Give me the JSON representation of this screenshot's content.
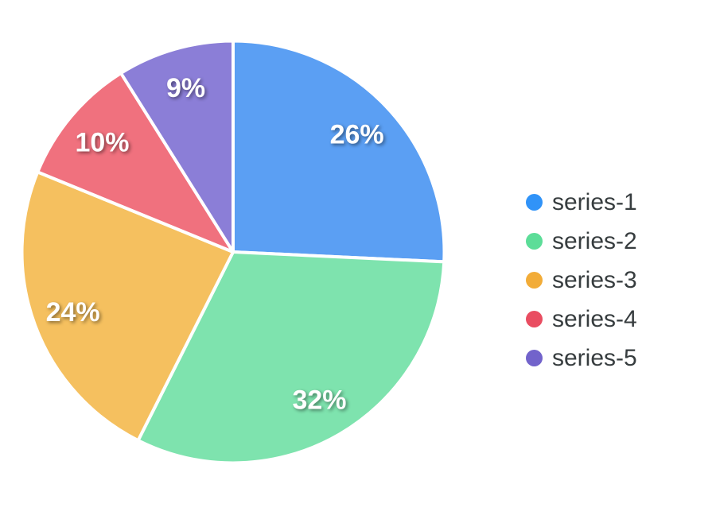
{
  "chart_data": {
    "type": "pie",
    "title": "",
    "labels": [
      "series-1",
      "series-2",
      "series-3",
      "series-4",
      "series-5"
    ],
    "values": [
      26,
      32,
      24,
      10,
      9
    ],
    "slice_labels": [
      "26%",
      "32%",
      "24%",
      "10%",
      "9%"
    ],
    "slice_colors": [
      "#5b9ff3",
      "#7ee3ae",
      "#f5c05f",
      "#f0717e",
      "#8b7ed7"
    ],
    "slice_label_color": "#ffffff",
    "stroke_color": "#ffffff",
    "start_angle_deg": 0,
    "direction": "clockwise",
    "legend": {
      "position": "right",
      "text_color": "#373d3f",
      "items": [
        {
          "label": "series-1",
          "marker_color": "#3093f8"
        },
        {
          "label": "series-2",
          "marker_color": "#5cdd98"
        },
        {
          "label": "series-3",
          "marker_color": "#f2ac38"
        },
        {
          "label": "series-4",
          "marker_color": "#e94d61"
        },
        {
          "label": "series-5",
          "marker_color": "#7263cb"
        }
      ]
    }
  }
}
